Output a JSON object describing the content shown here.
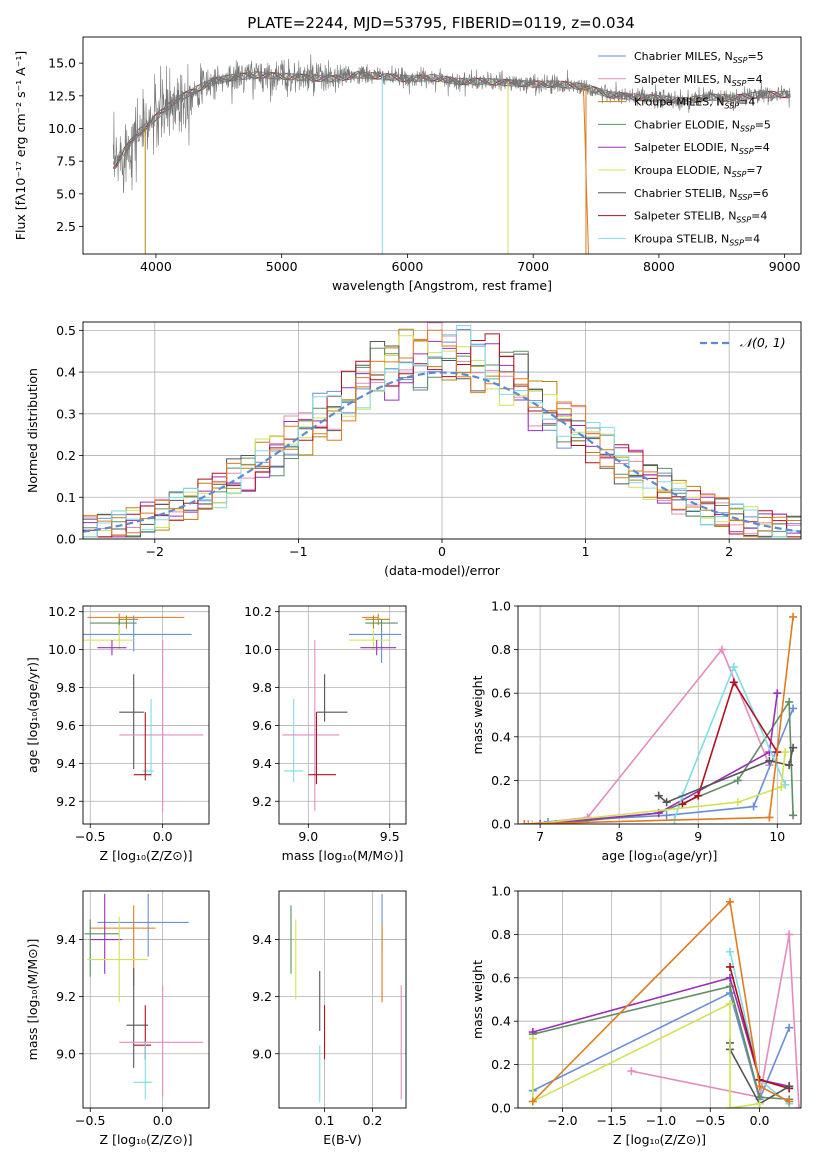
{
  "figure_title": "PLATE=2244, MJD=53795, FIBERID=0119, z=0.034",
  "colors": {
    "chabrier_miles": "#6a8fd8",
    "salpeter_miles": "#e58bbf",
    "kroupa_miles": "#b8860b",
    "chabrier_elodie": "#5f8f63",
    "salpeter_elodie": "#9b30b8",
    "kroupa_elodie": "#d4e157",
    "chabrier_stelib": "#555555",
    "salpeter_stelib": "#b01020",
    "kroupa_stelib": "#7fdde6",
    "orange": "#e07b20",
    "gauss": "#5b8bd4",
    "grid": "#b0b0b0"
  },
  "chart_data": [
    {
      "id": "spectrum",
      "type": "line",
      "xlabel": "wavelength [Angstrom, rest frame]",
      "ylabel": "Flux [fλ10⁻¹⁷ erg cm⁻² s⁻¹ A⁻¹]",
      "xlim": [
        3420,
        9130
      ],
      "ylim": [
        0.4,
        17.0
      ],
      "xticks": [
        4000,
        5000,
        6000,
        7000,
        8000,
        9000
      ],
      "yticks": [
        2.5,
        5.0,
        7.5,
        10.0,
        12.5,
        15.0
      ],
      "grid": false,
      "legend_position": "top-right",
      "legend": [
        {
          "label": "Chabrier MILES, N",
          "sub": "SSP",
          "suffix": "=5",
          "color": "#6a8fd8"
        },
        {
          "label": "Salpeter MILES, N",
          "sub": "SSP",
          "suffix": "=4",
          "color": "#e58bbf"
        },
        {
          "label": "Kroupa MILES, N",
          "sub": "SSP",
          "suffix": "=4",
          "color": "#b8860b"
        },
        {
          "label": "Chabrier ELODIE, N",
          "sub": "SSP",
          "suffix": "=5",
          "color": "#5f8f63"
        },
        {
          "label": "Salpeter ELODIE, N",
          "sub": "SSP",
          "suffix": "=4",
          "color": "#9b30b8"
        },
        {
          "label": "Kroupa ELODIE, N",
          "sub": "SSP",
          "suffix": "=7",
          "color": "#d4e157"
        },
        {
          "label": "Chabrier STELIB, N",
          "sub": "SSP",
          "suffix": "=6",
          "color": "#555555"
        },
        {
          "label": "Salpeter STELIB, N",
          "sub": "SSP",
          "suffix": "=4",
          "color": "#b01020"
        },
        {
          "label": "Kroupa STELIB, N",
          "sub": "SSP",
          "suffix": "=4",
          "color": "#7fdde6"
        }
      ],
      "continuum": {
        "x": [
          3680,
          3750,
          3850,
          3950,
          4050,
          4150,
          4300,
          4450,
          4600,
          4800,
          5000,
          5200,
          5400,
          5600,
          5800,
          6000,
          6200,
          6400,
          6600,
          6800,
          7000,
          7200,
          7400,
          7600,
          7800,
          8000,
          8200,
          8400,
          8600,
          8800,
          9000
        ],
        "y": [
          7.2,
          8.3,
          9.6,
          10.4,
          11.3,
          12.1,
          12.9,
          13.6,
          13.9,
          14.1,
          14.0,
          13.9,
          13.8,
          14.1,
          14.0,
          13.8,
          13.9,
          13.6,
          13.6,
          13.5,
          13.4,
          13.4,
          13.2,
          12.6,
          12.4,
          12.3,
          12.1,
          12.4,
          12.3,
          12.6,
          12.6
        ]
      },
      "dips": [
        {
          "x": 3915,
          "color": "#b8860b"
        },
        {
          "x": 5800,
          "color": "#7fdde6"
        },
        {
          "x": 6800,
          "color": "#d4e157"
        },
        {
          "x": 7420,
          "color": "#e07b20"
        }
      ]
    },
    {
      "id": "residuals",
      "type": "histogram",
      "xlabel": "(data-model)/error",
      "ylabel": "Normed distribution",
      "xlim": [
        -2.5,
        2.5
      ],
      "ylim": [
        0.0,
        0.52
      ],
      "xticks": [
        -2,
        -1,
        0,
        1,
        2
      ],
      "yticks": [
        0.0,
        0.1,
        0.2,
        0.3,
        0.4,
        0.5
      ],
      "grid": true,
      "bin_width": 0.1,
      "legend_position": "top-right",
      "gauss_label": "𝒩(0, 1)",
      "gauss": {
        "mu": 0,
        "sigma": 1
      }
    },
    {
      "id": "age_vs_Z",
      "type": "errorbar",
      "xlabel": "Z [log₁₀(Z/Z⊙)]",
      "ylabel": "age  [log₁₀(age/yr)]",
      "xlim": [
        -0.55,
        0.32
      ],
      "ylim": [
        9.08,
        10.23
      ],
      "xticks": [
        -0.5,
        0.0
      ],
      "yticks": [
        9.2,
        9.4,
        9.6,
        9.8,
        10.0,
        10.2
      ],
      "grid": true,
      "points": [
        {
          "x": -0.3,
          "y": 10.17,
          "xerr": [
            0.22,
            0.45
          ],
          "yerr": [
            0.05,
            0.02
          ],
          "color": "#e07b20"
        },
        {
          "x": -0.25,
          "y": 10.16,
          "xerr": [
            0.05,
            0.08
          ],
          "yerr": [
            0.05,
            0.02
          ],
          "color": "#b8860b"
        },
        {
          "x": -0.3,
          "y": 10.14,
          "xerr": [
            0.2,
            0.12
          ],
          "yerr": [
            0.06,
            0.02
          ],
          "color": "#5f8f63"
        },
        {
          "x": -0.2,
          "y": 10.08,
          "xerr": [
            0.35,
            0.4
          ],
          "yerr": [
            0.09,
            0.1
          ],
          "color": "#6a8fd8"
        },
        {
          "x": -0.3,
          "y": 10.05,
          "xerr": [
            0.25,
            0.1
          ],
          "yerr": [
            0.05,
            0.08
          ],
          "color": "#d4e157"
        },
        {
          "x": -0.35,
          "y": 10.01,
          "xerr": [
            0.1,
            0.1
          ],
          "yerr": [
            0.04,
            0.04
          ],
          "color": "#9b30b8"
        },
        {
          "x": -0.2,
          "y": 9.67,
          "xerr": [
            0.1,
            0.07
          ],
          "yerr": [
            0.3,
            0.2
          ],
          "color": "#555555"
        },
        {
          "x": -0.08,
          "y": 9.36,
          "xerr": [
            0.06,
            0.02
          ],
          "yerr": [
            0.03,
            0.38
          ],
          "color": "#7fdde6"
        },
        {
          "x": 0.0,
          "y": 9.55,
          "xerr": [
            0.3,
            0.28
          ],
          "yerr": [
            0.41,
            0.5
          ],
          "color": "#e58bbf"
        },
        {
          "x": -0.12,
          "y": 9.34,
          "xerr": [
            0.08,
            0.04
          ],
          "yerr": [
            0.03,
            0.33
          ],
          "color": "#b01020"
        }
      ]
    },
    {
      "id": "age_vs_mass",
      "type": "errorbar",
      "xlabel": "mass [log₁₀(M/M⊙)]",
      "ylabel": "",
      "xlim": [
        8.82,
        9.6
      ],
      "ylim": [
        9.08,
        10.23
      ],
      "xticks": [
        9.0,
        9.5
      ],
      "yticks": [
        9.2,
        9.4,
        9.6,
        9.8,
        10.0,
        10.2
      ],
      "grid": true,
      "points": [
        {
          "x": 9.43,
          "y": 10.17,
          "xerr": [
            0.1,
            0.0
          ],
          "yerr": [
            0.04,
            0.02
          ],
          "color": "#e07b20"
        },
        {
          "x": 9.4,
          "y": 10.16,
          "xerr": [
            0.05,
            0.1
          ],
          "yerr": [
            0.05,
            0.02
          ],
          "color": "#b8860b"
        },
        {
          "x": 9.45,
          "y": 10.14,
          "xerr": [
            0.1,
            0.1
          ],
          "yerr": [
            0.05,
            0.02
          ],
          "color": "#5f8f63"
        },
        {
          "x": 9.45,
          "y": 10.08,
          "xerr": [
            0.2,
            0.12
          ],
          "yerr": [
            0.15,
            0.02
          ],
          "color": "#6a8fd8"
        },
        {
          "x": 9.4,
          "y": 10.05,
          "xerr": [
            0.15,
            0.1
          ],
          "yerr": [
            0.05,
            0.05
          ],
          "color": "#d4e157"
        },
        {
          "x": 9.42,
          "y": 10.01,
          "xerr": [
            0.1,
            0.12
          ],
          "yerr": [
            0.04,
            0.04
          ],
          "color": "#9b30b8"
        },
        {
          "x": 9.1,
          "y": 9.67,
          "xerr": [
            0.05,
            0.14
          ],
          "yerr": [
            0.05,
            0.2
          ],
          "color": "#555555"
        },
        {
          "x": 8.91,
          "y": 9.36,
          "xerr": [
            0.06,
            0.06
          ],
          "yerr": [
            0.06,
            0.38
          ],
          "color": "#7fdde6"
        },
        {
          "x": 9.04,
          "y": 9.55,
          "xerr": [
            0.2,
            0.15
          ],
          "yerr": [
            0.4,
            0.5
          ],
          "color": "#e58bbf"
        },
        {
          "x": 9.05,
          "y": 9.34,
          "xerr": [
            0.05,
            0.12
          ],
          "yerr": [
            0.05,
            0.33
          ],
          "color": "#b01020"
        }
      ]
    },
    {
      "id": "weight_vs_age",
      "type": "line",
      "xlabel": "age  [log₁₀(age/yr)]",
      "ylabel": "mass weight",
      "xlim": [
        6.72,
        10.3
      ],
      "ylim": [
        0.0,
        1.0
      ],
      "xticks": [
        7,
        8,
        9,
        10
      ],
      "yticks": [
        0.0,
        0.2,
        0.4,
        0.6,
        0.8,
        1.0
      ],
      "grid": true,
      "series": [
        {
          "color": "#e58bbf",
          "x": [
            6.85,
            7.6,
            9.3,
            9.9
          ],
          "y": [
            0.0,
            0.03,
            0.8,
            0.27
          ]
        },
        {
          "color": "#6a8fd8",
          "x": [
            7.1,
            8.6,
            9.7,
            10.2
          ],
          "y": [
            0.01,
            0.04,
            0.08,
            0.53
          ]
        },
        {
          "color": "#5f8f63",
          "x": [
            7.2,
            8.5,
            9.5,
            10.15,
            10.2
          ],
          "y": [
            0.0,
            0.05,
            0.2,
            0.56,
            0.04
          ]
        },
        {
          "color": "#9b30b8",
          "x": [
            7.0,
            8.5,
            9.9,
            10.0
          ],
          "y": [
            0.0,
            0.05,
            0.33,
            0.6
          ]
        },
        {
          "color": "#7fdde6",
          "x": [
            8.7,
            8.8,
            9.45,
            10.1
          ],
          "y": [
            0.02,
            0.13,
            0.72,
            0.18
          ]
        },
        {
          "color": "#b01020",
          "x": [
            8.8,
            9.0,
            9.45,
            10.0
          ],
          "y": [
            0.09,
            0.13,
            0.65,
            0.33
          ]
        },
        {
          "color": "#555555",
          "x": [
            8.5,
            8.6,
            9.9,
            10.15,
            10.2
          ],
          "y": [
            0.13,
            0.1,
            0.29,
            0.27,
            0.35
          ]
        },
        {
          "color": "#d4e157",
          "x": [
            6.9,
            9.5,
            10.05,
            10.1
          ],
          "y": [
            0.0,
            0.1,
            0.17,
            0.33
          ]
        },
        {
          "color": "#e07b20",
          "x": [
            6.8,
            9.9,
            10.2
          ],
          "y": [
            0.0,
            0.03,
            0.95
          ]
        }
      ]
    },
    {
      "id": "mass_vs_Z",
      "type": "errorbar",
      "xlabel": "Z [log₁₀(Z/Z⊙)]",
      "ylabel": "mass [log₁₀(M/M⊙)]",
      "xlim": [
        -0.55,
        0.32
      ],
      "ylim": [
        8.81,
        9.57
      ],
      "xticks": [
        -0.5,
        0.0
      ],
      "yticks": [
        9.0,
        9.2,
        9.4
      ],
      "grid": true,
      "points": [
        {
          "x": -0.1,
          "y": 9.46,
          "xerr": [
            0.35,
            0.28
          ],
          "yerr": [
            0.12,
            0.1
          ],
          "color": "#6a8fd8"
        },
        {
          "x": -0.2,
          "y": 9.44,
          "xerr": [
            0.3,
            0.15
          ],
          "yerr": [
            0.2,
            0.08
          ],
          "color": "#e07b20"
        },
        {
          "x": -0.5,
          "y": 9.42,
          "xerr": [
            0.04,
            0.2
          ],
          "yerr": [
            0.15,
            0.05
          ],
          "color": "#5f8f63"
        },
        {
          "x": -0.4,
          "y": 9.4,
          "xerr": [
            0.1,
            0.12
          ],
          "yerr": [
            0.12,
            0.16
          ],
          "color": "#9b30b8"
        },
        {
          "x": -0.3,
          "y": 9.33,
          "xerr": [
            0.22,
            0.2
          ],
          "yerr": [
            0.15,
            0.15
          ],
          "color": "#d4e157"
        },
        {
          "x": -0.2,
          "y": 9.1,
          "xerr": [
            0.05,
            0.1
          ],
          "yerr": [
            0.15,
            0.2
          ],
          "color": "#555555"
        },
        {
          "x": -0.12,
          "y": 9.03,
          "xerr": [
            0.08,
            0.04
          ],
          "yerr": [
            0.05,
            0.14
          ],
          "color": "#b01020"
        },
        {
          "x": 0.0,
          "y": 9.04,
          "xerr": [
            0.3,
            0.28
          ],
          "yerr": [
            0.19,
            0.2
          ],
          "color": "#e58bbf"
        },
        {
          "x": -0.12,
          "y": 8.9,
          "xerr": [
            0.08,
            0.05
          ],
          "yerr": [
            0.06,
            0.14
          ],
          "color": "#7fdde6"
        }
      ]
    },
    {
      "id": "mass_vs_ebv",
      "type": "errorbar",
      "xlabel": "E(B-V)",
      "ylabel": "",
      "xlim": [
        0.005,
        0.27
      ],
      "ylim": [
        8.81,
        9.57
      ],
      "xticks": [
        0.1,
        0.2
      ],
      "yticks": [
        9.0,
        9.2,
        9.4
      ],
      "grid": true,
      "points": [
        {
          "x": 0.22,
          "y": 9.46,
          "xerr": [
            0,
            0
          ],
          "yerr": [
            0.1,
            0.1
          ],
          "color": "#6a8fd8"
        },
        {
          "x": 0.22,
          "y": 9.3,
          "xerr": [
            0,
            0
          ],
          "yerr": [
            0.12,
            0.15
          ],
          "color": "#e07b20"
        },
        {
          "x": 0.03,
          "y": 9.4,
          "xerr": [
            0,
            0
          ],
          "yerr": [
            0.12,
            0.12
          ],
          "color": "#5f8f63"
        },
        {
          "x": 0.04,
          "y": 9.35,
          "xerr": [
            0,
            0
          ],
          "yerr": [
            0.16,
            0.12
          ],
          "color": "#d4e157"
        },
        {
          "x": 0.09,
          "y": 9.18,
          "xerr": [
            0,
            0
          ],
          "yerr": [
            0.1,
            0.11
          ],
          "color": "#555555"
        },
        {
          "x": 0.1,
          "y": 9.05,
          "xerr": [
            0,
            0
          ],
          "yerr": [
            0.07,
            0.12
          ],
          "color": "#b01020"
        },
        {
          "x": 0.09,
          "y": 8.93,
          "xerr": [
            0,
            0
          ],
          "yerr": [
            0.1,
            0.1
          ],
          "color": "#7fdde6"
        },
        {
          "x": 0.26,
          "y": 9.04,
          "xerr": [
            0,
            0
          ],
          "yerr": [
            0.2,
            0.2
          ],
          "color": "#e58bbf"
        }
      ]
    },
    {
      "id": "weight_vs_Z",
      "type": "line",
      "xlabel": "Z [log₁₀(Z/Z⊙)]",
      "ylabel": "mass weight",
      "xlim": [
        -2.45,
        0.42
      ],
      "ylim": [
        0.0,
        1.0
      ],
      "xticks": [
        -2.0,
        -1.5,
        -1.0,
        -0.5,
        0.0
      ],
      "yticks": [
        0.0,
        0.2,
        0.4,
        0.6,
        0.8,
        1.0
      ],
      "grid": true,
      "series": [
        {
          "color": "#e58bbf",
          "x": [
            -1.3,
            0.0,
            0.3,
            0.4
          ],
          "y": [
            0.17,
            0.05,
            0.8,
            0.0
          ]
        },
        {
          "color": "#6a8fd8",
          "x": [
            -2.3,
            -0.3,
            0.0,
            0.3
          ],
          "y": [
            0.08,
            0.53,
            0.04,
            0.37
          ]
        },
        {
          "color": "#5f8f63",
          "x": [
            -2.3,
            -0.3,
            0.0,
            0.3
          ],
          "y": [
            0.34,
            0.56,
            0.05,
            0.04
          ]
        },
        {
          "color": "#9b30b8",
          "x": [
            -2.3,
            -0.3,
            0.0,
            0.3
          ],
          "y": [
            0.35,
            0.6,
            0.13,
            0.1
          ]
        },
        {
          "color": "#7fdde6",
          "x": [
            -0.3,
            0.0,
            0.3
          ],
          "y": [
            0.72,
            0.13,
            0.02
          ]
        },
        {
          "color": "#b01020",
          "x": [
            -0.3,
            0.0,
            0.3
          ],
          "y": [
            0.65,
            0.13,
            0.09
          ]
        },
        {
          "color": "#555555",
          "x": [
            -0.3,
            -0.3,
            0.0,
            0.3
          ],
          "y": [
            0.3,
            0.27,
            0.02,
            0.1
          ]
        },
        {
          "color": "#d4e157",
          "x": [
            -2.3,
            -2.3,
            -0.3,
            -0.3,
            0.0
          ],
          "y": [
            0.32,
            0.03,
            0.48,
            0.0,
            0.02
          ]
        },
        {
          "color": "#e07b20",
          "x": [
            -2.3,
            -0.3,
            0.0,
            0.3
          ],
          "y": [
            0.03,
            0.95,
            0.1,
            0.03
          ]
        }
      ]
    }
  ]
}
